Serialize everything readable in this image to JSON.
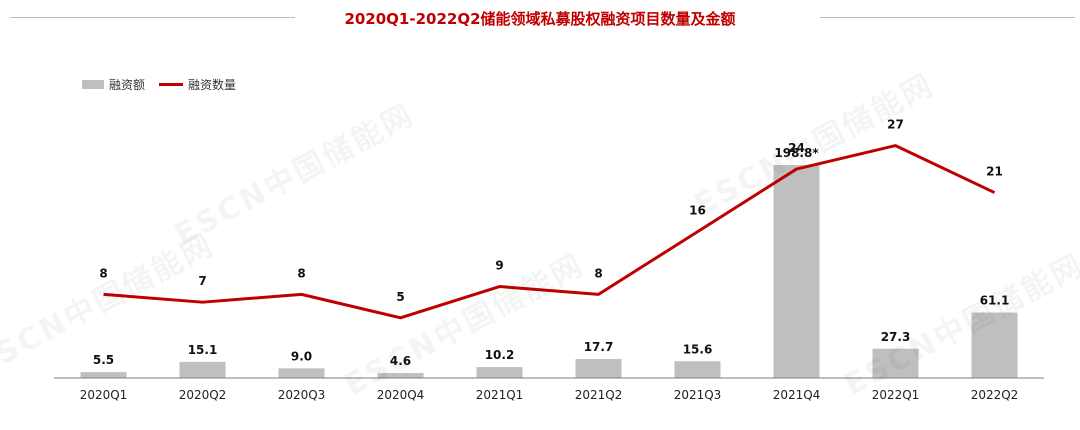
{
  "chart_data": {
    "type": "bar+line",
    "title": "2020Q1-2022Q2储能领域私募股权融资项目数量及金额",
    "categories": [
      "2020Q1",
      "2020Q2",
      "2020Q3",
      "2020Q4",
      "2021Q1",
      "2021Q2",
      "2021Q3",
      "2021Q4",
      "2022Q1",
      "2022Q2"
    ],
    "series": [
      {
        "name": "融资额",
        "type": "bar",
        "values": [
          5.5,
          15.1,
          9.0,
          4.6,
          10.2,
          17.7,
          15.6,
          198.8,
          27.3,
          61.1
        ],
        "labels": [
          "5.5",
          "15.1",
          "9.0",
          "4.6",
          "10.2",
          "17.7",
          "15.6",
          "198.8*",
          "27.3",
          "61.1"
        ],
        "color": "#bfbfbf"
      },
      {
        "name": "融资数量",
        "type": "line",
        "values": [
          8,
          7,
          8,
          5,
          9,
          8,
          16,
          24,
          27,
          21
        ],
        "labels": [
          "8",
          "7",
          "8",
          "5",
          "9",
          "8",
          "16",
          "24",
          "27",
          "21"
        ],
        "color": "#c00000"
      }
    ],
    "legend": "top-left",
    "grid": false
  },
  "watermark": "ESCN中国储能网"
}
